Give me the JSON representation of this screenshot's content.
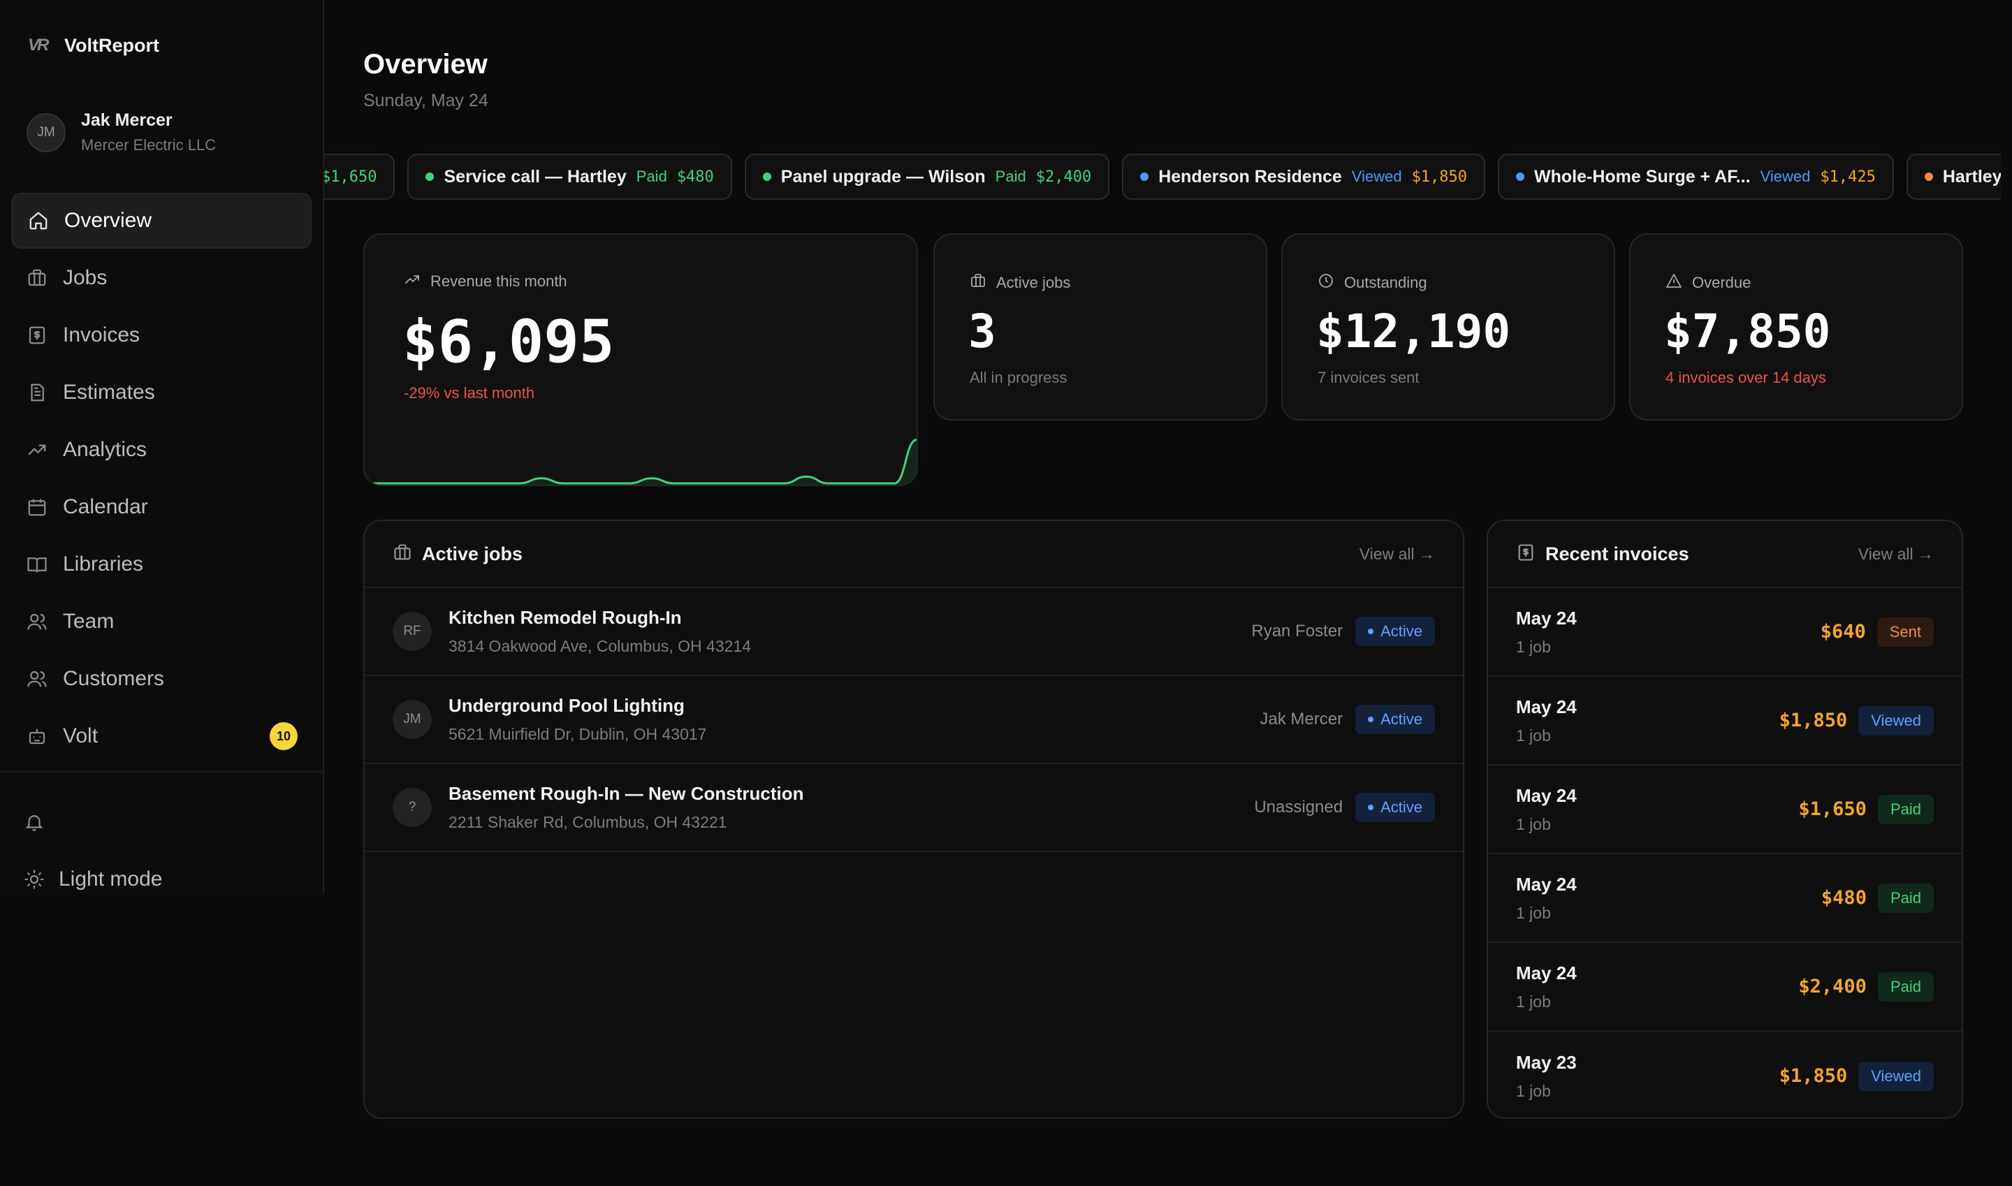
{
  "brand": {
    "logo_text": "VR",
    "name": "VoltReport"
  },
  "user": {
    "initials": "JM",
    "name": "Jak Mercer",
    "company": "Mercer Electric LLC"
  },
  "nav": [
    {
      "label": "Overview",
      "icon": "home-icon"
    },
    {
      "label": "Jobs",
      "icon": "briefcase-icon"
    },
    {
      "label": "Invoices",
      "icon": "invoice-icon"
    },
    {
      "label": "Estimates",
      "icon": "document-icon"
    },
    {
      "label": "Analytics",
      "icon": "trending-up-icon"
    },
    {
      "label": "Calendar",
      "icon": "calendar-icon"
    },
    {
      "label": "Libraries",
      "icon": "book-icon"
    },
    {
      "label": "Team",
      "icon": "users-icon"
    },
    {
      "label": "Customers",
      "icon": "users-icon"
    },
    {
      "label": "Volt",
      "icon": "volt-icon",
      "badge": "10"
    }
  ],
  "sidebar_bottom": {
    "light_mode_label": "Light mode"
  },
  "header": {
    "title": "Overview",
    "date": "Sunday, May 24"
  },
  "ticker": [
    {
      "name": "",
      "status": "",
      "amount": "$1,650",
      "dot": "",
      "status_color": "#3fd37b",
      "amount_color": "#3fd37b"
    },
    {
      "name": "Service call — Hartley",
      "status": "Paid",
      "amount": "$480",
      "dot": "#3fd37b",
      "status_color": "#3fd37b",
      "amount_color": "#3fd37b"
    },
    {
      "name": "Panel upgrade — Wilson",
      "status": "Paid",
      "amount": "$2,400",
      "dot": "#3fd37b",
      "status_color": "#3fd37b",
      "amount_color": "#3fd37b"
    },
    {
      "name": "Henderson Residence",
      "status": "Viewed",
      "amount": "$1,850",
      "dot": "#4f96f7",
      "status_color": "#4f96f7",
      "amount_color": "#f5a524"
    },
    {
      "name": "Whole-Home Surge + AF...",
      "status": "Viewed",
      "amount": "$1,425",
      "dot": "#4f96f7",
      "status_color": "#4f96f7",
      "amount_color": "#f5a524"
    },
    {
      "name": "Hartley Residence",
      "status": "",
      "amount": "",
      "dot": "#f08a4b",
      "status_color": "#f08a4b",
      "amount_color": "#f5a524"
    }
  ],
  "stats": {
    "revenue": {
      "label": "Revenue this month",
      "value": "$6,095",
      "delta": "-29% vs last month"
    },
    "active_jobs": {
      "label": "Active jobs",
      "value": "3",
      "sub": "All in progress"
    },
    "outstanding": {
      "label": "Outstanding",
      "value": "$12,190",
      "sub": "7 invoices sent"
    },
    "overdue": {
      "label": "Overdue",
      "value": "$7,850",
      "sub": "4 invoices over 14 days"
    }
  },
  "chart_data": {
    "type": "area",
    "title": "",
    "series": [
      {
        "values": [
          0,
          0,
          0,
          0,
          0,
          0,
          0,
          0,
          6,
          0,
          0,
          0,
          0,
          6,
          0,
          0,
          0,
          0,
          0,
          0,
          8,
          0,
          0,
          0,
          0,
          52
        ]
      }
    ],
    "color": "#3fd37b"
  },
  "active_jobs": {
    "title": "Active jobs",
    "view_all": "View all →",
    "rows": [
      {
        "initials": "RF",
        "title": "Kitchen Remodel Rough-In",
        "address": "3814 Oakwood Ave, Columbus, OH 43214",
        "assignee": "Ryan Foster",
        "status": "Active"
      },
      {
        "initials": "JM",
        "title": "Underground Pool Lighting",
        "address": "5621 Muirfield Dr, Dublin, OH 43017",
        "assignee": "Jak Mercer",
        "status": "Active"
      },
      {
        "initials": "?",
        "title": "Basement Rough-In — New Construction",
        "address": "2211 Shaker Rd, Columbus, OH 43221",
        "assignee": "Unassigned",
        "status": "Active"
      }
    ]
  },
  "recent_invoices": {
    "title": "Recent invoices",
    "view_all": "View all →",
    "rows": [
      {
        "date": "May 24",
        "jobs": "1 job",
        "amount": "$640",
        "status": "Sent",
        "kind": "sent"
      },
      {
        "date": "May 24",
        "jobs": "1 job",
        "amount": "$1,850",
        "status": "Viewed",
        "kind": "viewed"
      },
      {
        "date": "May 24",
        "jobs": "1 job",
        "amount": "$1,650",
        "status": "Paid",
        "kind": "paid"
      },
      {
        "date": "May 24",
        "jobs": "1 job",
        "amount": "$480",
        "status": "Paid",
        "kind": "paid"
      },
      {
        "date": "May 24",
        "jobs": "1 job",
        "amount": "$2,400",
        "status": "Paid",
        "kind": "paid"
      },
      {
        "date": "May 23",
        "jobs": "1 job",
        "amount": "$1,850",
        "status": "Viewed",
        "kind": "viewed"
      }
    ]
  }
}
